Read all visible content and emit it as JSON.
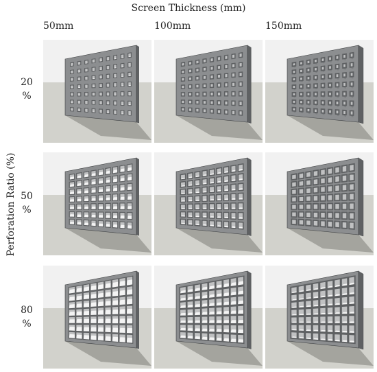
{
  "figure": {
    "title": "Screen Thickness (mm)",
    "ylabel": "Perforation Ratio (%)",
    "columns": [
      {
        "label": "50mm",
        "thickness": 50
      },
      {
        "label": "100mm",
        "thickness": 100
      },
      {
        "label": "150mm",
        "thickness": 150
      }
    ],
    "rows": [
      {
        "value": "20",
        "unit": "%",
        "ratio": 0.2
      },
      {
        "value": "50",
        "unit": "%",
        "ratio": 0.5
      },
      {
        "value": "80",
        "unit": "%",
        "ratio": 0.8
      }
    ],
    "grid_cols": 9,
    "grid_rows": 7,
    "colors": {
      "sky": "#f1f1f1",
      "ground": "#d2d2cc",
      "panel_face": "#8c8e90",
      "panel_side": "#5f6163",
      "panel_edge": "#3e4042",
      "hole": "#f4f4f4",
      "shadow": "#7d7d78"
    }
  }
}
